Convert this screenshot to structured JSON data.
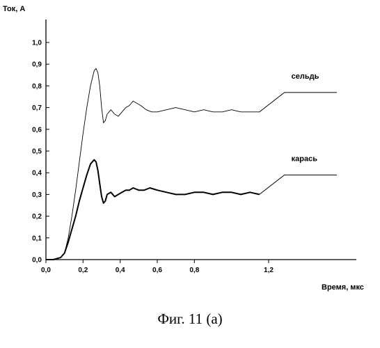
{
  "chart_data": {
    "type": "line",
    "ylabel": "Ток, А",
    "xlabel": "Время, мкс",
    "xlim": [
      0,
      1.6
    ],
    "ylim": [
      0,
      1.1
    ],
    "x_ticks": [
      "0,0",
      "0,2",
      "0,4",
      "0,6",
      "0,8",
      "1,2"
    ],
    "y_ticks": [
      "0,0",
      "0,1",
      "0,2",
      "0,3",
      "0,4",
      "0,5",
      "0,6",
      "0,7",
      "0,8",
      "0,9",
      "1,0"
    ],
    "grid": false,
    "series": [
      {
        "name": "сельдь",
        "color": "#000000",
        "x": [
          0,
          0.04,
          0.08,
          0.1,
          0.12,
          0.14,
          0.16,
          0.18,
          0.2,
          0.22,
          0.24,
          0.26,
          0.27,
          0.28,
          0.29,
          0.3,
          0.31,
          0.32,
          0.33,
          0.35,
          0.37,
          0.39,
          0.41,
          0.43,
          0.45,
          0.47,
          0.49,
          0.51,
          0.54,
          0.57,
          0.6,
          0.65,
          0.7,
          0.75,
          0.8,
          0.85,
          0.9,
          0.95,
          1.0,
          1.05,
          1.1,
          1.15
        ],
        "y": [
          0.0,
          0.0,
          0.01,
          0.03,
          0.1,
          0.2,
          0.32,
          0.45,
          0.58,
          0.7,
          0.8,
          0.87,
          0.88,
          0.86,
          0.8,
          0.7,
          0.63,
          0.64,
          0.67,
          0.69,
          0.67,
          0.66,
          0.68,
          0.7,
          0.71,
          0.73,
          0.72,
          0.71,
          0.69,
          0.68,
          0.68,
          0.69,
          0.7,
          0.69,
          0.68,
          0.69,
          0.68,
          0.68,
          0.69,
          0.68,
          0.68,
          0.68
        ]
      },
      {
        "name": "карась",
        "color": "#000000",
        "x": [
          0,
          0.04,
          0.08,
          0.1,
          0.12,
          0.14,
          0.16,
          0.18,
          0.2,
          0.22,
          0.24,
          0.26,
          0.27,
          0.28,
          0.29,
          0.3,
          0.31,
          0.32,
          0.33,
          0.35,
          0.37,
          0.39,
          0.41,
          0.43,
          0.45,
          0.47,
          0.5,
          0.53,
          0.56,
          0.6,
          0.65,
          0.7,
          0.75,
          0.8,
          0.85,
          0.9,
          0.95,
          1.0,
          1.05,
          1.1,
          1.15
        ],
        "y": [
          0.0,
          0.0,
          0.01,
          0.03,
          0.08,
          0.14,
          0.2,
          0.27,
          0.33,
          0.39,
          0.44,
          0.46,
          0.45,
          0.41,
          0.35,
          0.29,
          0.26,
          0.27,
          0.3,
          0.31,
          0.29,
          0.3,
          0.31,
          0.32,
          0.32,
          0.33,
          0.32,
          0.32,
          0.33,
          0.32,
          0.31,
          0.3,
          0.3,
          0.31,
          0.31,
          0.3,
          0.31,
          0.31,
          0.3,
          0.31,
          0.3
        ]
      }
    ]
  },
  "caption": "Фиг. 11 (а)"
}
